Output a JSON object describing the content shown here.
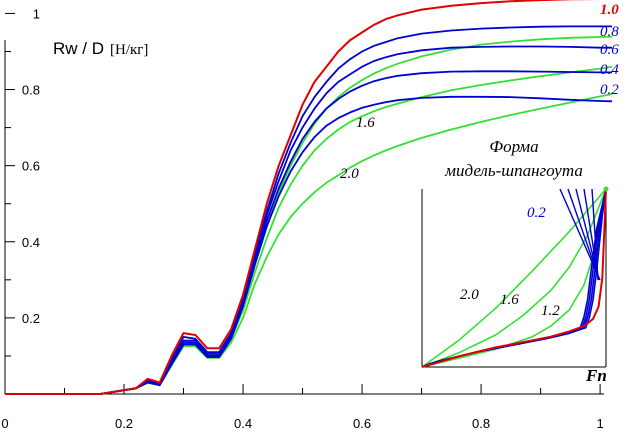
{
  "chart_data": [
    {
      "type": "line",
      "title": "",
      "ylabel": "Rw / D",
      "ylabel_unit": "[Н/кг]",
      "xlabel": "Fn",
      "xlim": [
        0,
        1.02
      ],
      "ylim": [
        0,
        1.03
      ],
      "xticks": [
        0,
        0.2,
        0.4,
        0.6,
        0.8,
        1
      ],
      "yticks": [
        0.2,
        0.4,
        0.6,
        0.8,
        1
      ],
      "xtick_labels": [
        "0",
        "0.2",
        "0.4",
        "0.6",
        "0.8",
        "1"
      ],
      "ytick_labels": [
        "0.2",
        "0.4",
        "0.6",
        "0.8",
        "1"
      ],
      "grid": false,
      "series": [
        {
          "name": "1.0",
          "color": "#e00000",
          "x": [
            0,
            0.16,
            0.2,
            0.22,
            0.24,
            0.26,
            0.28,
            0.3,
            0.32,
            0.34,
            0.36,
            0.38,
            0.4,
            0.42,
            0.44,
            0.46,
            0.48,
            0.5,
            0.52,
            0.54,
            0.56,
            0.58,
            0.6,
            0.62,
            0.64,
            0.66,
            0.7,
            0.75,
            0.8,
            0.85,
            0.9,
            0.95,
            1.0,
            1.02
          ],
          "values": [
            0,
            0,
            0.01,
            0.015,
            0.04,
            0.03,
            0.1,
            0.16,
            0.155,
            0.12,
            0.12,
            0.17,
            0.26,
            0.38,
            0.5,
            0.6,
            0.68,
            0.76,
            0.82,
            0.86,
            0.9,
            0.93,
            0.95,
            0.97,
            0.985,
            0.995,
            1.01,
            1.02,
            1.027,
            1.032,
            1.035,
            1.037,
            1.038,
            1.038
          ]
        },
        {
          "name": "0.8",
          "color": "#0000d0",
          "x": [
            0,
            0.16,
            0.2,
            0.22,
            0.24,
            0.26,
            0.28,
            0.3,
            0.32,
            0.34,
            0.36,
            0.38,
            0.4,
            0.42,
            0.44,
            0.46,
            0.48,
            0.5,
            0.52,
            0.54,
            0.56,
            0.58,
            0.6,
            0.62,
            0.64,
            0.66,
            0.7,
            0.75,
            0.8,
            0.85,
            0.9,
            0.95,
            1.0,
            1.02
          ],
          "values": [
            0,
            0,
            0.01,
            0.015,
            0.035,
            0.027,
            0.09,
            0.15,
            0.145,
            0.11,
            0.11,
            0.16,
            0.25,
            0.37,
            0.48,
            0.58,
            0.66,
            0.73,
            0.78,
            0.82,
            0.855,
            0.88,
            0.9,
            0.915,
            0.925,
            0.935,
            0.947,
            0.955,
            0.96,
            0.963,
            0.965,
            0.966,
            0.966,
            0.966
          ]
        },
        {
          "name": "0.6",
          "color": "#0000d0",
          "x": [
            0,
            0.16,
            0.2,
            0.22,
            0.24,
            0.26,
            0.28,
            0.3,
            0.32,
            0.34,
            0.36,
            0.38,
            0.4,
            0.42,
            0.44,
            0.46,
            0.48,
            0.5,
            0.52,
            0.54,
            0.56,
            0.58,
            0.6,
            0.62,
            0.64,
            0.66,
            0.7,
            0.75,
            0.8,
            0.85,
            0.9,
            0.95,
            1.0,
            1.02
          ],
          "values": [
            0,
            0,
            0.01,
            0.015,
            0.033,
            0.025,
            0.085,
            0.14,
            0.14,
            0.105,
            0.105,
            0.155,
            0.24,
            0.36,
            0.47,
            0.56,
            0.64,
            0.7,
            0.75,
            0.79,
            0.82,
            0.84,
            0.86,
            0.875,
            0.885,
            0.893,
            0.903,
            0.91,
            0.912,
            0.913,
            0.913,
            0.912,
            0.91,
            0.91
          ]
        },
        {
          "name": "0.4",
          "color": "#0000d0",
          "x": [
            0,
            0.16,
            0.2,
            0.22,
            0.24,
            0.26,
            0.28,
            0.3,
            0.32,
            0.34,
            0.36,
            0.38,
            0.4,
            0.42,
            0.44,
            0.46,
            0.48,
            0.5,
            0.52,
            0.54,
            0.56,
            0.58,
            0.6,
            0.62,
            0.64,
            0.66,
            0.7,
            0.75,
            0.8,
            0.85,
            0.9,
            0.95,
            1.0,
            1.02
          ],
          "values": [
            0,
            0,
            0.01,
            0.015,
            0.032,
            0.024,
            0.08,
            0.135,
            0.135,
            0.1,
            0.1,
            0.15,
            0.235,
            0.35,
            0.455,
            0.54,
            0.61,
            0.67,
            0.715,
            0.75,
            0.775,
            0.795,
            0.81,
            0.822,
            0.83,
            0.836,
            0.843,
            0.847,
            0.848,
            0.848,
            0.847,
            0.846,
            0.845,
            0.845
          ]
        },
        {
          "name": "0.2",
          "color": "#0000d0",
          "x": [
            0,
            0.16,
            0.2,
            0.22,
            0.24,
            0.26,
            0.28,
            0.3,
            0.32,
            0.34,
            0.36,
            0.38,
            0.4,
            0.42,
            0.44,
            0.46,
            0.48,
            0.5,
            0.52,
            0.54,
            0.56,
            0.58,
            0.6,
            0.62,
            0.64,
            0.66,
            0.7,
            0.75,
            0.8,
            0.85,
            0.9,
            0.95,
            1.0,
            1.02
          ],
          "values": [
            0,
            0,
            0.01,
            0.015,
            0.03,
            0.023,
            0.078,
            0.13,
            0.13,
            0.097,
            0.097,
            0.145,
            0.23,
            0.34,
            0.44,
            0.52,
            0.585,
            0.635,
            0.675,
            0.705,
            0.725,
            0.74,
            0.752,
            0.76,
            0.767,
            0.772,
            0.778,
            0.781,
            0.781,
            0.78,
            0.777,
            0.773,
            0.77,
            0.769
          ]
        },
        {
          "name": "1.2",
          "color": "#33e033",
          "x": [
            0,
            0.16,
            0.2,
            0.22,
            0.24,
            0.26,
            0.28,
            0.3,
            0.32,
            0.34,
            0.36,
            0.38,
            0.4,
            0.42,
            0.44,
            0.46,
            0.48,
            0.5,
            0.52,
            0.54,
            0.56,
            0.58,
            0.6,
            0.62,
            0.64,
            0.66,
            0.7,
            0.75,
            0.8,
            0.85,
            0.9,
            0.95,
            1.0,
            1.02
          ],
          "values": [
            0,
            0,
            0.01,
            0.015,
            0.033,
            0.025,
            0.085,
            0.14,
            0.14,
            0.105,
            0.105,
            0.15,
            0.23,
            0.34,
            0.44,
            0.53,
            0.6,
            0.66,
            0.71,
            0.75,
            0.78,
            0.805,
            0.825,
            0.842,
            0.856,
            0.868,
            0.887,
            0.905,
            0.918,
            0.926,
            0.932,
            0.936,
            0.938,
            0.939
          ]
        },
        {
          "name": "1.6",
          "color": "#33e033",
          "x": [
            0,
            0.16,
            0.2,
            0.22,
            0.24,
            0.26,
            0.28,
            0.3,
            0.32,
            0.34,
            0.36,
            0.38,
            0.4,
            0.42,
            0.44,
            0.46,
            0.48,
            0.5,
            0.52,
            0.54,
            0.56,
            0.58,
            0.6,
            0.62,
            0.64,
            0.66,
            0.7,
            0.75,
            0.8,
            0.85,
            0.9,
            0.95,
            1.0,
            1.02
          ],
          "values": [
            0,
            0,
            0.01,
            0.015,
            0.032,
            0.024,
            0.08,
            0.13,
            0.13,
            0.1,
            0.1,
            0.145,
            0.22,
            0.32,
            0.41,
            0.49,
            0.55,
            0.6,
            0.64,
            0.67,
            0.695,
            0.715,
            0.73,
            0.743,
            0.754,
            0.763,
            0.78,
            0.798,
            0.812,
            0.824,
            0.835,
            0.845,
            0.855,
            0.86
          ]
        },
        {
          "name": "2.0",
          "color": "#33e033",
          "x": [
            0,
            0.16,
            0.2,
            0.22,
            0.24,
            0.26,
            0.28,
            0.3,
            0.32,
            0.34,
            0.36,
            0.38,
            0.4,
            0.42,
            0.44,
            0.46,
            0.48,
            0.5,
            0.52,
            0.54,
            0.56,
            0.58,
            0.6,
            0.62,
            0.64,
            0.66,
            0.7,
            0.75,
            0.8,
            0.85,
            0.9,
            0.95,
            1.0,
            1.02
          ],
          "values": [
            0,
            0,
            0.01,
            0.015,
            0.03,
            0.023,
            0.075,
            0.125,
            0.125,
            0.095,
            0.095,
            0.135,
            0.2,
            0.29,
            0.36,
            0.42,
            0.465,
            0.5,
            0.53,
            0.555,
            0.575,
            0.595,
            0.612,
            0.627,
            0.64,
            0.652,
            0.673,
            0.695,
            0.715,
            0.733,
            0.75,
            0.766,
            0.782,
            0.788
          ]
        }
      ]
    },
    {
      "type": "line",
      "title": "Форма мидель-шпангоута",
      "series": [
        {
          "name": "0.2",
          "color": "#0000d0",
          "x": [
            0,
            0.05,
            0.1,
            0.2,
            0.3,
            0.4,
            0.5,
            0.6,
            0.7,
            0.8,
            0.86,
            0.88,
            0.9,
            0.92,
            0.95,
            1.0
          ],
          "values": [
            0,
            0.02,
            0.035,
            0.06,
            0.085,
            0.105,
            0.125,
            0.145,
            0.165,
            0.19,
            0.22,
            0.28,
            0.38,
            0.55,
            0.78,
            1.0
          ]
        },
        {
          "name": "0.4",
          "color": "#0000d0",
          "x": [
            0,
            0.05,
            0.1,
            0.2,
            0.3,
            0.4,
            0.5,
            0.6,
            0.7,
            0.8,
            0.87,
            0.89,
            0.91,
            0.93,
            0.96,
            1.0
          ],
          "values": [
            0,
            0.02,
            0.035,
            0.06,
            0.085,
            0.105,
            0.125,
            0.145,
            0.165,
            0.19,
            0.22,
            0.28,
            0.38,
            0.55,
            0.8,
            1.0
          ]
        },
        {
          "name": "0.6",
          "color": "#0000d0",
          "x": [
            0,
            0.05,
            0.1,
            0.2,
            0.3,
            0.4,
            0.5,
            0.6,
            0.7,
            0.8,
            0.88,
            0.9,
            0.92,
            0.94,
            0.97,
            1.0
          ],
          "values": [
            0,
            0.02,
            0.035,
            0.06,
            0.085,
            0.105,
            0.125,
            0.145,
            0.165,
            0.19,
            0.22,
            0.28,
            0.38,
            0.55,
            0.82,
            1.0
          ]
        },
        {
          "name": "0.8",
          "color": "#0000d0",
          "x": [
            0,
            0.05,
            0.1,
            0.2,
            0.3,
            0.4,
            0.5,
            0.6,
            0.7,
            0.8,
            0.89,
            0.91,
            0.93,
            0.95,
            0.98,
            1.0
          ],
          "values": [
            0,
            0.02,
            0.035,
            0.06,
            0.085,
            0.105,
            0.125,
            0.145,
            0.165,
            0.19,
            0.22,
            0.28,
            0.38,
            0.55,
            0.85,
            1.0
          ]
        },
        {
          "name": "1.0",
          "color": "#e00000",
          "x": [
            0,
            0.1,
            0.2,
            0.3,
            0.4,
            0.5,
            0.6,
            0.7,
            0.8,
            0.88,
            0.93,
            0.96,
            0.98,
            0.99,
            1.0
          ],
          "values": [
            0,
            0.03,
            0.06,
            0.085,
            0.11,
            0.13,
            0.15,
            0.17,
            0.2,
            0.23,
            0.27,
            0.34,
            0.5,
            0.75,
            1.0
          ]
        },
        {
          "name": "1.2",
          "color": "#33e033",
          "x": [
            0,
            0.2,
            0.4,
            0.6,
            0.7,
            0.8,
            0.88,
            0.93,
            0.97,
            1.0
          ],
          "values": [
            0,
            0.05,
            0.1,
            0.17,
            0.23,
            0.32,
            0.46,
            0.62,
            0.82,
            1.0
          ]
        },
        {
          "name": "1.6",
          "color": "#33e033",
          "x": [
            0,
            0.2,
            0.4,
            0.55,
            0.7,
            0.8,
            0.9,
            1.0
          ],
          "values": [
            0,
            0.08,
            0.18,
            0.29,
            0.43,
            0.56,
            0.74,
            1.0
          ]
        },
        {
          "name": "2.0",
          "color": "#33e033",
          "x": [
            0,
            0.2,
            0.4,
            0.6,
            0.8,
            1.0
          ],
          "values": [
            0,
            0.15,
            0.33,
            0.54,
            0.76,
            1.0
          ]
        }
      ]
    }
  ]
}
